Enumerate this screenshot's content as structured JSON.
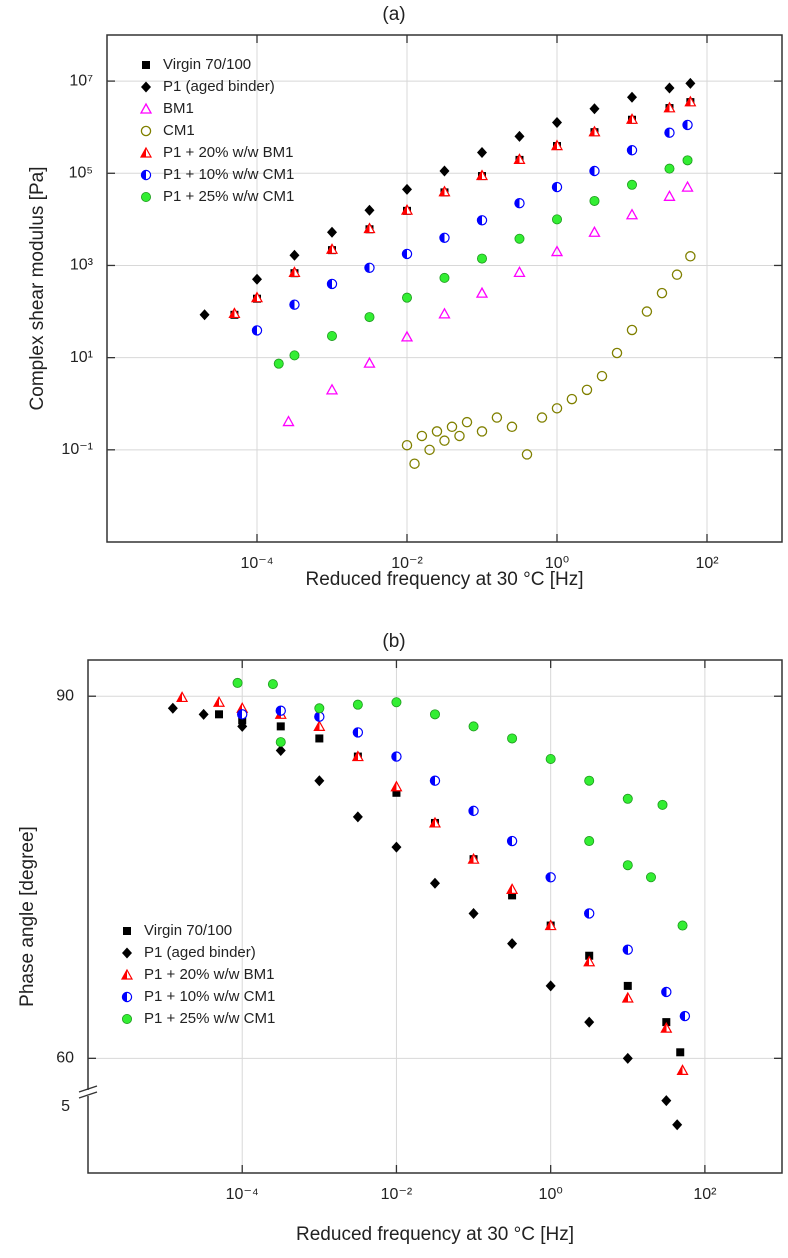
{
  "chart_data": [
    {
      "type": "scatter",
      "title": "(a)",
      "x_label": "Reduced frequency at 30 °C [Hz]",
      "y_label": "Complex shear modulus [Pa]",
      "xscale": "log",
      "yscale": "log",
      "xlim": [
        1e-06,
        1000
      ],
      "ylim": [
        0.001,
        100000000
      ],
      "xticks": [
        {
          "value": 0.0001,
          "label": "10⁻⁴"
        },
        {
          "value": 0.01,
          "label": "10⁻²"
        },
        {
          "value": 1,
          "label": "10⁰"
        },
        {
          "value": 100,
          "label": "10²"
        }
      ],
      "yticks": [
        {
          "value": 0.1,
          "label": "10⁻¹"
        },
        {
          "value": 10,
          "label": "10¹"
        },
        {
          "value": 1000,
          "label": "10³"
        },
        {
          "value": 100000,
          "label": "10⁵"
        },
        {
          "value": 10000000,
          "label": "10⁷"
        }
      ],
      "grid": true,
      "legend": "upper left",
      "series": [
        {
          "name": "Virgin 70/100",
          "color": "#000000",
          "marker": "square",
          "x": [
            5e-05,
            0.0001,
            0.000316,
            0.001,
            0.00316,
            0.01,
            0.0316,
            0.1,
            0.316,
            1,
            3.16,
            10,
            31.6,
            60
          ],
          "values": [
            85,
            190,
            680,
            2150,
            6100,
            15300,
            38500,
            87000,
            195000,
            390000,
            780000,
            1450000,
            2600000,
            3500000
          ]
        },
        {
          "name": "P1 (aged binder)",
          "color": "#000000",
          "marker": "diamond",
          "x": [
            2e-05,
            0.0001,
            0.000316,
            0.001,
            0.00316,
            0.01,
            0.0316,
            0.1,
            0.316,
            1,
            3.16,
            10,
            31.6,
            60
          ],
          "values": [
            85,
            501,
            1660,
            5250,
            15800,
            44700,
            112000,
            282000,
            631000,
            1260000,
            2510000,
            4470000,
            7080000,
            8910000
          ]
        },
        {
          "name": "BM1",
          "color": "#ff00ff",
          "marker": "triangle-open",
          "x": [
            0.000263,
            0.001,
            0.00316,
            0.01,
            0.0316,
            0.1,
            0.316,
            1,
            3.16,
            10,
            31.6,
            55
          ],
          "values": [
            0.41,
            2,
            7.6,
            28.2,
            89.1,
            251,
            708,
            2000,
            5250,
            12600,
            31600,
            50100
          ]
        },
        {
          "name": "CM1",
          "color": "#808000",
          "marker": "circle-open",
          "x": [
            0.01,
            0.0126,
            0.0158,
            0.02,
            0.0251,
            0.0316,
            0.0398,
            0.0501,
            0.0631,
            0.1,
            0.158,
            0.251,
            0.398,
            0.631,
            1,
            1.58,
            2.51,
            3.98,
            6.31,
            10,
            15.8,
            25.1,
            39.8,
            60
          ],
          "values": [
            0.126,
            0.05,
            0.2,
            0.1,
            0.251,
            0.158,
            0.316,
            0.2,
            0.398,
            0.251,
            0.501,
            0.316,
            0.0794,
            0.501,
            0.794,
            1.26,
            2,
            3.98,
            12.6,
            39.8,
            100,
            251,
            631,
            1580
          ]
        },
        {
          "name": "P1 + 20% w/w BM1",
          "color": "#ff0000",
          "marker": "triangle-half",
          "x": [
            5e-05,
            0.0001,
            0.000316,
            0.001,
            0.00316,
            0.01,
            0.0316,
            0.1,
            0.316,
            1,
            3.16,
            10,
            31.6,
            60
          ],
          "values": [
            91,
            200,
            708,
            2240,
            6310,
            15800,
            39800,
            89100,
            200000,
            398000,
            794000,
            1480000,
            2630000,
            3550000
          ]
        },
        {
          "name": "P1 + 10% w/w CM1",
          "color": "#0000ff",
          "marker": "circle-half",
          "x": [
            0.0001,
            0.000316,
            0.001,
            0.00316,
            0.01,
            0.0316,
            0.1,
            0.316,
            1,
            3.16,
            10,
            31.6,
            55
          ],
          "values": [
            39,
            141,
            398,
            891,
            1780,
            3980,
            9550,
            22400,
            50100,
            112000,
            316000,
            759000,
            1120000
          ]
        },
        {
          "name": "P1 + 25% w/w CM1",
          "color": "#33ee33",
          "marker": "circle",
          "x": [
            0.000195,
            0.000316,
            0.001,
            0.00316,
            0.01,
            0.0316,
            0.1,
            0.316,
            1,
            3.16,
            10,
            31.6,
            55
          ],
          "values": [
            7.4,
            11.2,
            29.5,
            75.9,
            200,
            537,
            1410,
            3800,
            10000,
            25100,
            56200,
            126000,
            191000
          ]
        }
      ]
    },
    {
      "type": "scatter",
      "title": "(b)",
      "x_label": "Reduced frequency at 30 °C [Hz]",
      "y_label": "Phase angle [degree]",
      "xscale": "log",
      "yscale": "linear",
      "xlim": [
        1e-06,
        1000
      ],
      "ylim": [
        50.5,
        93
      ],
      "xticks": [
        {
          "value": 0.0001,
          "label": "10⁻⁴"
        },
        {
          "value": 0.01,
          "label": "10⁻²"
        },
        {
          "value": 1,
          "label": "10⁰"
        },
        {
          "value": 100,
          "label": "10²"
        }
      ],
      "yticks": [
        60,
        90
      ],
      "y_break_label": "5",
      "grid": true,
      "legend": "lower left",
      "series": [
        {
          "name": "Virgin 70/100",
          "color": "#000000",
          "marker": "square",
          "x": [
            5e-05,
            0.0001,
            0.000316,
            0.001,
            0.00316,
            0.01,
            0.0316,
            0.1,
            0.316,
            1,
            3.16,
            10,
            31.6,
            47.9
          ],
          "values": [
            88.5,
            88,
            87.5,
            86.5,
            85,
            82,
            79.5,
            76.5,
            73.5,
            71,
            68.5,
            66,
            63,
            60.5
          ]
        },
        {
          "name": "P1 (aged binder)",
          "color": "#000000",
          "marker": "diamond",
          "x": [
            1.26e-05,
            3.16e-05,
            0.0001,
            0.000316,
            0.001,
            0.00316,
            0.01,
            0.0316,
            0.1,
            0.316,
            1,
            3.16,
            10,
            31.6,
            43.7
          ],
          "values": [
            89,
            88.5,
            87.5,
            85.5,
            83,
            80,
            77.5,
            74.5,
            72,
            69.5,
            66,
            63,
            60,
            56.5,
            54.5
          ]
        },
        {
          "name": "P1 + 20% w/w BM1",
          "color": "#ff0000",
          "marker": "triangle-half",
          "x": [
            1.66e-05,
            5e-05,
            0.0001,
            0.000316,
            0.001,
            0.00316,
            0.01,
            0.0316,
            0.1,
            0.316,
            1,
            3.16,
            10,
            31.6,
            51.3
          ],
          "values": [
            89.9,
            89.5,
            89,
            88.5,
            87.5,
            85,
            82.5,
            79.5,
            76.5,
            74,
            71,
            68,
            65,
            62.5,
            59
          ]
        },
        {
          "name": "P1 + 10% w/w CM1",
          "color": "#0000ff",
          "marker": "circle-half",
          "x": [
            0.0001,
            0.000316,
            0.001,
            0.00316,
            0.01,
            0.0316,
            0.1,
            0.316,
            1,
            3.16,
            10,
            31.6,
            55
          ],
          "values": [
            88.5,
            88.8,
            88.3,
            87,
            85,
            83,
            80.5,
            78,
            75,
            72,
            69,
            65.5,
            63.5
          ]
        },
        {
          "name": "P1 + 25% w/w CM1",
          "color": "#33ee33",
          "marker": "circle",
          "x": [
            8.7e-05,
            0.00025,
            0.000316,
            0.001,
            0.00316,
            0.01,
            0.0316,
            0.1,
            0.316,
            1,
            3.16,
            10,
            28.2,
            3.16,
            10,
            20,
            51.3
          ],
          "values": [
            91.1,
            91,
            86.2,
            89,
            89.3,
            89.5,
            88.5,
            87.5,
            86.5,
            84.8,
            83,
            81.5,
            81,
            78,
            76,
            75,
            71
          ]
        }
      ]
    }
  ]
}
